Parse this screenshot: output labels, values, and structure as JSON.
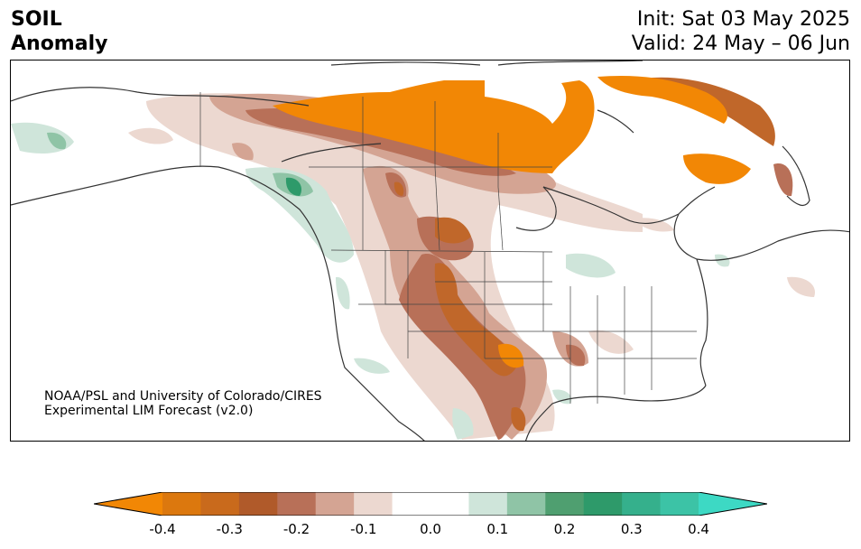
{
  "title": {
    "line1": "SOIL",
    "line2": "Anomaly"
  },
  "dates": {
    "init": "Init: Sat 03 May 2025",
    "valid": "Valid: 24 May – 06 Jun"
  },
  "credit": {
    "line1": "NOAA/PSL and University of Colorado/CIRES",
    "line2": "Experimental LIM Forecast (v2.0)"
  },
  "colorbar": {
    "ticks": [
      "-0.4",
      "-0.3",
      "-0.2",
      "-0.1",
      "0.0",
      "0.1",
      "0.2",
      "0.3",
      "0.4"
    ],
    "colors": [
      "#f28705",
      "#dc780e",
      "#c96a1c",
      "#b05a2a",
      "#b87058",
      "#d4a493",
      "#ecd8d0",
      "#ffffff",
      "#ffffff",
      "#cfe5da",
      "#8fc4a6",
      "#4f9f70",
      "#2e9a6a",
      "#35b08c",
      "#3cc3a6",
      "#3dd9c4"
    ]
  },
  "palette": {
    "dry_strong": "#f28705",
    "dry_mid": "#c0672a",
    "dry_brown": "#b87058",
    "dry_light": "#d4a493",
    "dry_faint": "#ecd8d0",
    "wet_light": "#cfe5da",
    "wet_mid": "#8fc4a6",
    "wet_strong": "#2e9a6a",
    "border": "#333333"
  }
}
